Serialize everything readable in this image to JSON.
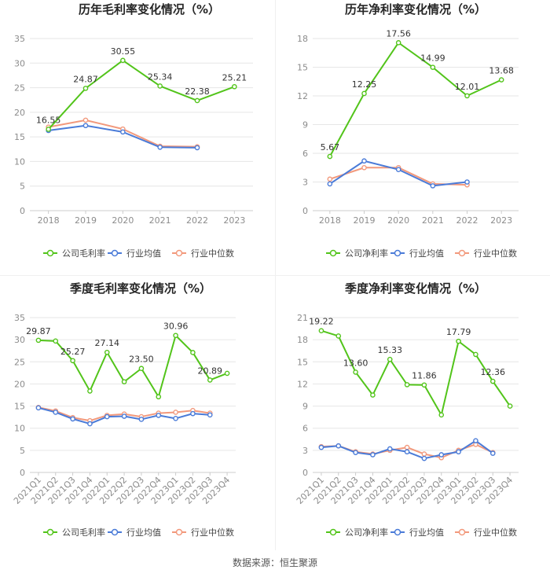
{
  "source_label": "数据来源：恒生聚源",
  "colors": {
    "company": "#52c41a",
    "industry_avg": "#4a7bd8",
    "industry_median": "#f2997c",
    "grid": "#e6e6e6",
    "axis_text": "#8c8c8c",
    "label_text": "#333333",
    "title": "#262626"
  },
  "chart_data": [
    {
      "type": "line",
      "title": "历年毛利率变化情况（%）",
      "categories": [
        "2018",
        "2019",
        "2020",
        "2021",
        "2022",
        "2023"
      ],
      "ylim": [
        0,
        35
      ],
      "yticks": [
        0,
        5,
        10,
        15,
        20,
        25,
        30,
        35
      ],
      "series": [
        {
          "name": "公司毛利率",
          "values": [
            16.55,
            24.87,
            30.55,
            25.34,
            22.38,
            25.21
          ]
        },
        {
          "name": "行业均值",
          "values": [
            16.3,
            17.3,
            16.0,
            12.9,
            12.8,
            null
          ]
        },
        {
          "name": "行业中位数",
          "values": [
            17.0,
            18.4,
            16.6,
            13.1,
            13.0,
            null
          ]
        }
      ],
      "labels": [
        "16.55",
        "24.87",
        "30.55",
        "25.34",
        "22.38",
        "25.21"
      ]
    },
    {
      "type": "line",
      "title": "历年净利率变化情况（%）",
      "categories": [
        "2018",
        "2019",
        "2020",
        "2021",
        "2022",
        "2023"
      ],
      "ylim": [
        0,
        18
      ],
      "yticks": [
        0,
        3,
        6,
        9,
        12,
        15,
        18
      ],
      "series": [
        {
          "name": "公司净利率",
          "values": [
            5.67,
            12.25,
            17.56,
            14.99,
            12.01,
            13.68
          ]
        },
        {
          "name": "行业均值",
          "values": [
            2.8,
            5.2,
            4.3,
            2.6,
            3.0,
            null
          ]
        },
        {
          "name": "行业中位数",
          "values": [
            3.3,
            4.5,
            4.5,
            2.8,
            2.7,
            null
          ]
        }
      ],
      "labels": [
        "5.67",
        "12.25",
        "17.56",
        "14.99",
        "12.01",
        "13.68"
      ]
    },
    {
      "type": "line",
      "title": "季度毛利率变化情况（%）",
      "categories": [
        "2021Q1",
        "2021Q2",
        "2021Q3",
        "2021Q4",
        "2022Q1",
        "2022Q2",
        "2022Q3",
        "2022Q4",
        "2023Q1",
        "2023Q2",
        "2023Q3",
        "2023Q4"
      ],
      "ylim": [
        0,
        35
      ],
      "yticks": [
        0,
        5,
        10,
        15,
        20,
        25,
        30,
        35
      ],
      "series": [
        {
          "name": "公司毛利率",
          "values": [
            29.87,
            29.7,
            25.27,
            18.4,
            27.14,
            20.5,
            23.5,
            17.1,
            30.96,
            27.1,
            20.89,
            22.4
          ]
        },
        {
          "name": "行业均值",
          "values": [
            14.6,
            13.6,
            12.1,
            11.0,
            12.6,
            12.7,
            12.0,
            12.9,
            12.2,
            13.3,
            13.0,
            null
          ]
        },
        {
          "name": "行业中位数",
          "values": [
            14.7,
            13.9,
            12.4,
            11.7,
            12.9,
            13.2,
            12.6,
            13.4,
            13.6,
            14.0,
            13.4,
            null
          ]
        }
      ],
      "labels": [
        "29.87",
        "",
        "25.27",
        "",
        "27.14",
        "",
        "23.50",
        "",
        "30.96",
        "",
        "20.89",
        ""
      ]
    },
    {
      "type": "line",
      "title": "季度净利率变化情况（%）",
      "categories": [
        "2021Q1",
        "2021Q2",
        "2021Q3",
        "2021Q4",
        "2022Q1",
        "2022Q2",
        "2022Q3",
        "2022Q4",
        "2023Q1",
        "2023Q2",
        "2023Q3",
        "2023Q4"
      ],
      "ylim": [
        0,
        21
      ],
      "yticks": [
        0,
        3,
        6,
        9,
        12,
        15,
        18,
        21
      ],
      "series": [
        {
          "name": "公司净利率",
          "values": [
            19.22,
            18.5,
            13.6,
            10.5,
            15.33,
            11.9,
            11.86,
            7.8,
            17.79,
            16.0,
            12.36,
            9.0
          ]
        },
        {
          "name": "行业均值",
          "values": [
            3.4,
            3.6,
            2.7,
            2.4,
            3.2,
            2.8,
            1.9,
            2.4,
            2.8,
            4.3,
            2.6,
            null
          ]
        },
        {
          "name": "行业中位数",
          "values": [
            3.5,
            3.6,
            2.8,
            2.5,
            3.0,
            3.4,
            2.5,
            2.0,
            3.0,
            3.8,
            2.7,
            null
          ]
        }
      ],
      "labels": [
        "19.22",
        "",
        "13.60",
        "",
        "15.33",
        "",
        "11.86",
        "",
        "17.79",
        "",
        "12.36",
        ""
      ]
    }
  ]
}
